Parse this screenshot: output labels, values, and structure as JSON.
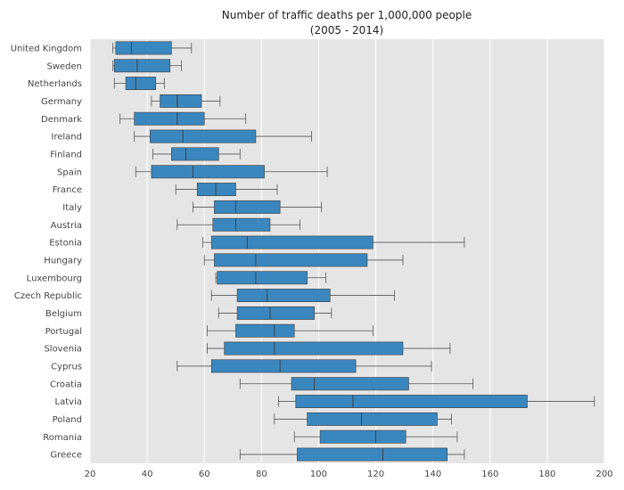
{
  "chart_data": {
    "type": "box",
    "title": "Number of traffic deaths per 1,000,000 people",
    "subtitle": "(2005 - 2014)",
    "xlim": [
      20,
      200
    ],
    "x_ticks": [
      20,
      40,
      60,
      80,
      100,
      120,
      140,
      160,
      180,
      200
    ],
    "grid": true,
    "background": "#e5e5e5",
    "box_color": "#3a87bf",
    "categories": [
      "United Kingdom",
      "Sweden",
      "Netherlands",
      "Germany",
      "Denmark",
      "Ireland",
      "Finland",
      "Spain",
      "France",
      "Italy",
      "Austria",
      "Estonia",
      "Hungary",
      "Luxembourg",
      "Czech Republic",
      "Belgium",
      "Portugal",
      "Slovenia",
      "Cyprus",
      "Croatia",
      "Latvia",
      "Poland",
      "Romania",
      "Greece"
    ],
    "boxes": [
      {
        "whislo": 28,
        "q1": 29,
        "med": 34.5,
        "q3": 48.5,
        "whishi": 55.5
      },
      {
        "whislo": 28,
        "q1": 28.5,
        "med": 36.5,
        "q3": 48,
        "whishi": 52
      },
      {
        "whislo": 28.5,
        "q1": 32.5,
        "med": 36,
        "q3": 43,
        "whishi": 46
      },
      {
        "whislo": 41.5,
        "q1": 44.5,
        "med": 50.5,
        "q3": 59,
        "whishi": 65.5
      },
      {
        "whislo": 30.5,
        "q1": 35.5,
        "med": 50.5,
        "q3": 60,
        "whishi": 74.5
      },
      {
        "whislo": 35.5,
        "q1": 41,
        "med": 52.5,
        "q3": 78,
        "whishi": 97.5
      },
      {
        "whislo": 42,
        "q1": 48.5,
        "med": 53.5,
        "q3": 65,
        "whishi": 72.5
      },
      {
        "whislo": 36,
        "q1": 41.5,
        "med": 56,
        "q3": 81,
        "whishi": 103
      },
      {
        "whislo": 50,
        "q1": 57.5,
        "med": 64,
        "q3": 71,
        "whishi": 85.5
      },
      {
        "whislo": 56,
        "q1": 63.5,
        "med": 71,
        "q3": 86.5,
        "whishi": 101
      },
      {
        "whislo": 50.5,
        "q1": 63,
        "med": 71,
        "q3": 83,
        "whishi": 93.5
      },
      {
        "whislo": 59.5,
        "q1": 62.5,
        "med": 75,
        "q3": 119,
        "whishi": 151
      },
      {
        "whislo": 60,
        "q1": 63.5,
        "med": 78,
        "q3": 117,
        "whishi": 129.5
      },
      {
        "whislo": 64,
        "q1": 64.5,
        "med": 78,
        "q3": 96,
        "whishi": 102.5
      },
      {
        "whislo": 62.5,
        "q1": 71.5,
        "med": 82,
        "q3": 104,
        "whishi": 126.5
      },
      {
        "whislo": 65,
        "q1": 71.5,
        "med": 83,
        "q3": 98.5,
        "whishi": 104.5
      },
      {
        "whislo": 61,
        "q1": 71,
        "med": 84.5,
        "q3": 91.5,
        "whishi": 119
      },
      {
        "whislo": 61,
        "q1": 67,
        "med": 84.5,
        "q3": 129.5,
        "whishi": 146
      },
      {
        "whislo": 50.5,
        "q1": 62.5,
        "med": 86.5,
        "q3": 113,
        "whishi": 139.5
      },
      {
        "whislo": 72.5,
        "q1": 90.5,
        "med": 98.5,
        "q3": 131.5,
        "whishi": 154
      },
      {
        "whislo": 86,
        "q1": 92,
        "med": 112,
        "q3": 173,
        "whishi": 196.5
      },
      {
        "whislo": 84.5,
        "q1": 96,
        "med": 115,
        "q3": 141.5,
        "whishi": 146.5
      },
      {
        "whislo": 91.5,
        "q1": 100.5,
        "med": 120,
        "q3": 130.5,
        "whishi": 148.5
      },
      {
        "whislo": 72.5,
        "q1": 92.5,
        "med": 122.5,
        "q3": 145,
        "whishi": 151
      }
    ]
  }
}
